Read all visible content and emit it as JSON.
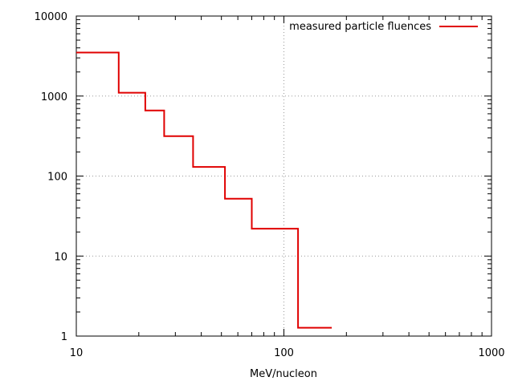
{
  "chart_data": {
    "type": "line",
    "style": "step",
    "title": "",
    "xlabel": "MeV/nucleon",
    "ylabel": "",
    "xscale": "log",
    "yscale": "log",
    "xlim": [
      10,
      1000
    ],
    "ylim": [
      1,
      10000
    ],
    "x_ticks": [
      "10",
      "100",
      "1000"
    ],
    "y_ticks": [
      "1",
      "10",
      "100",
      "1000",
      "10000"
    ],
    "grid": true,
    "legend_position": "top-right",
    "series": [
      {
        "name": "measured particle fluences",
        "color": "#e00000",
        "steps": [
          {
            "x0": 10,
            "x1": 16,
            "y": 3500
          },
          {
            "x0": 16,
            "x1": 21.5,
            "y": 1100
          },
          {
            "x0": 21.5,
            "x1": 26.5,
            "y": 660
          },
          {
            "x0": 26.5,
            "x1": 36.5,
            "y": 315
          },
          {
            "x0": 36.5,
            "x1": 52,
            "y": 130
          },
          {
            "x0": 52,
            "x1": 70,
            "y": 52
          },
          {
            "x0": 70,
            "x1": 117,
            "y": 22
          },
          {
            "x0": 117,
            "x1": 170,
            "y": 1.27
          }
        ]
      }
    ]
  }
}
